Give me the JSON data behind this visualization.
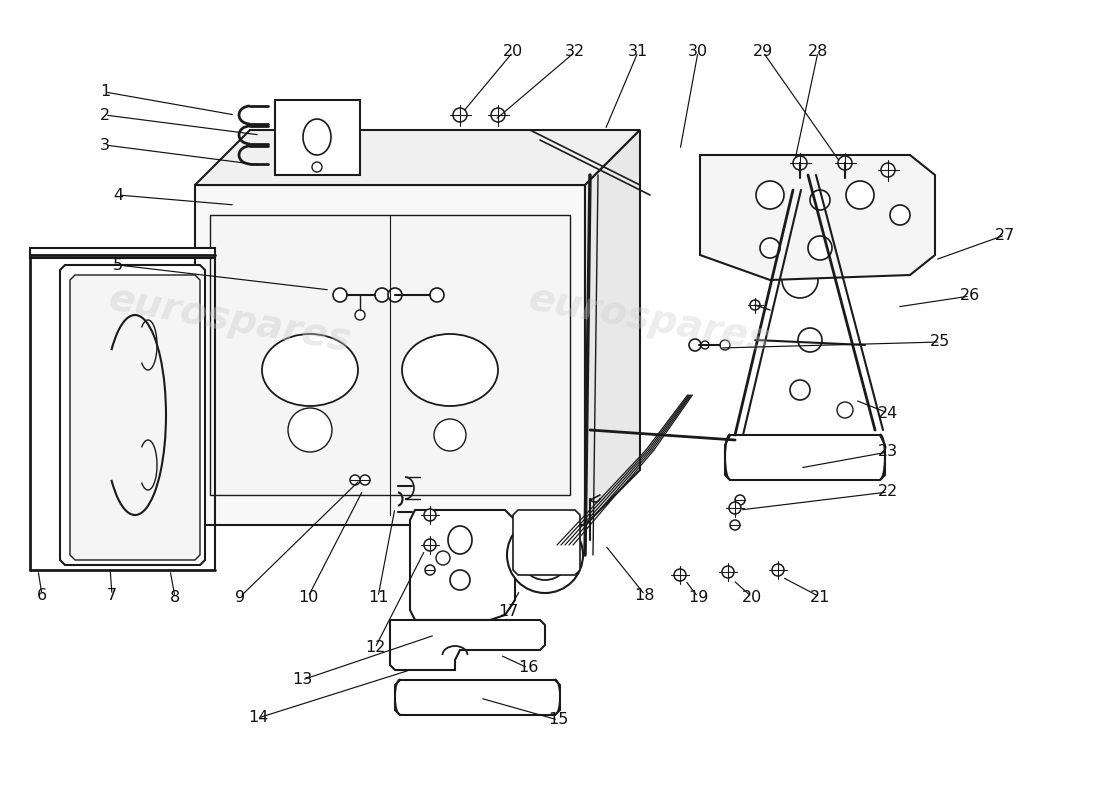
{
  "background_color": "#ffffff",
  "line_color": "#1a1a1a",
  "watermark_text": "eurospares",
  "watermark_color": "#cccccc"
}
